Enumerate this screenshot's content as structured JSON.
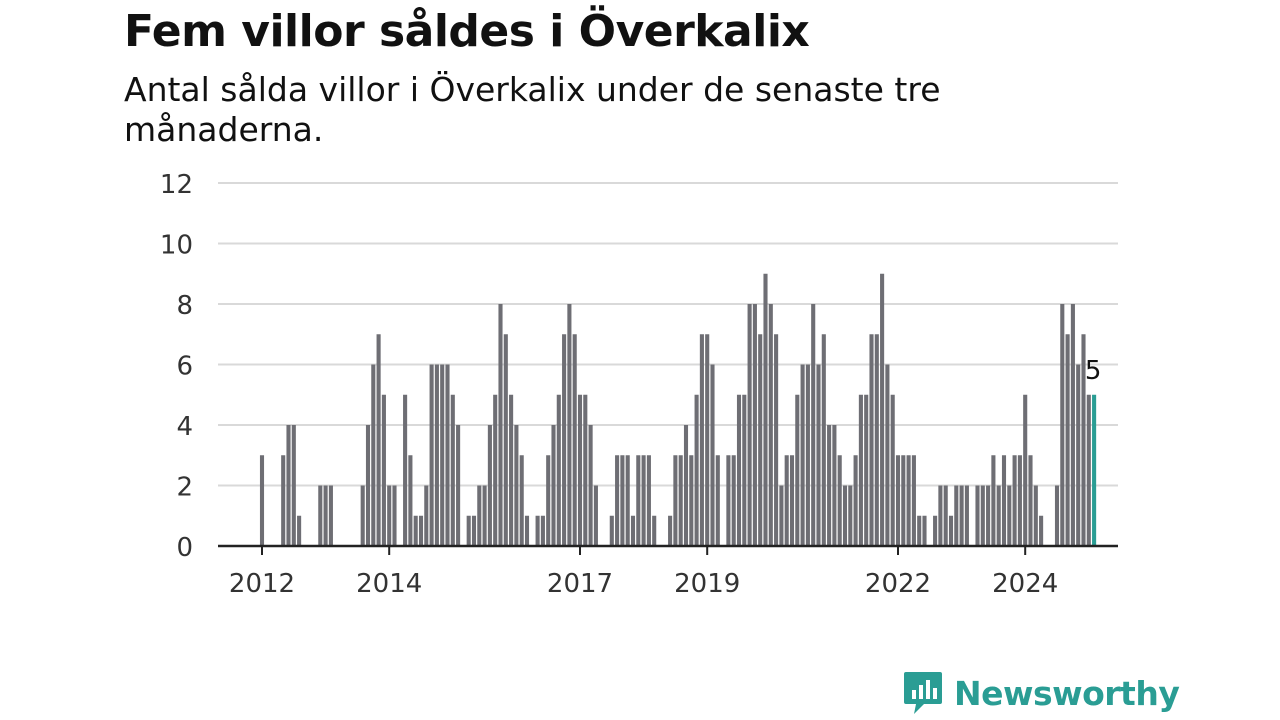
{
  "title": "Fem villor såldes i Överkalix",
  "subtitle": "Antal sålda villor i Överkalix under de senaste tre månaderna.",
  "brand": "Newsworthy",
  "colors": {
    "bar": "#6e6e74",
    "highlight": "#2a9d94",
    "grid": "#d9d9d9",
    "axis": "#222222",
    "brand": "#2a9d94"
  },
  "chart_data": {
    "type": "bar",
    "start": "2011-01",
    "unit": "month",
    "ylim": [
      0,
      12
    ],
    "yticks": [
      0,
      2,
      4,
      6,
      8,
      10,
      12
    ],
    "xticks": [
      {
        "label": "2012",
        "index": 12
      },
      {
        "label": "2014",
        "index": 36
      },
      {
        "label": "2017",
        "index": 72
      },
      {
        "label": "2019",
        "index": 96
      },
      {
        "label": "2022",
        "index": 132
      },
      {
        "label": "2024",
        "index": 156
      }
    ],
    "values": [
      0,
      0,
      0,
      0,
      0,
      0,
      0,
      0,
      0,
      0,
      0,
      0,
      3,
      0,
      0,
      0,
      3,
      4,
      4,
      1,
      0,
      0,
      0,
      2,
      2,
      2,
      0,
      0,
      0,
      0,
      0,
      2,
      4,
      6,
      7,
      5,
      2,
      2,
      0,
      5,
      3,
      1,
      1,
      2,
      6,
      6,
      6,
      6,
      5,
      4,
      0,
      1,
      1,
      2,
      2,
      4,
      5,
      8,
      7,
      5,
      4,
      3,
      1,
      0,
      1,
      1,
      3,
      4,
      5,
      7,
      8,
      7,
      5,
      5,
      4,
      2,
      0,
      0,
      1,
      3,
      3,
      3,
      1,
      3,
      3,
      3,
      1,
      0,
      0,
      1,
      3,
      3,
      4,
      3,
      5,
      7,
      7,
      6,
      3,
      0,
      3,
      3,
      5,
      5,
      8,
      8,
      7,
      9,
      8,
      7,
      2,
      3,
      3,
      5,
      6,
      6,
      8,
      6,
      7,
      4,
      4,
      3,
      2,
      2,
      3,
      5,
      5,
      7,
      7,
      9,
      6,
      5,
      3,
      3,
      3,
      3,
      1,
      1,
      0,
      1,
      2,
      2,
      1,
      2,
      2,
      2,
      0,
      2,
      2,
      2,
      3,
      2,
      3,
      2,
      3,
      3,
      5,
      3,
      2,
      1,
      0,
      0,
      2,
      8,
      7,
      8,
      6,
      7,
      5,
      5
    ],
    "highlight_index": 169,
    "highlight_label": "5"
  }
}
